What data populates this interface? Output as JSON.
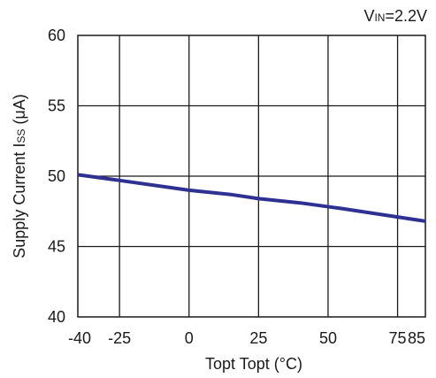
{
  "chart_data": {
    "type": "line",
    "annotation": {
      "main": "V",
      "sub": "IN",
      "rest": "=2.2V"
    },
    "xlabel": "Topt Topt (°C)",
    "ylabel": {
      "main": "Supply Current I",
      "sub": "SS",
      "rest": " (μA)"
    },
    "xlim": [
      -40,
      85
    ],
    "ylim": [
      40,
      60
    ],
    "xticks": [
      -40,
      -25,
      0,
      25,
      50,
      75,
      85
    ],
    "xtick_labels": [
      "-40",
      "-25",
      "0",
      "25",
      "50",
      "75",
      "85"
    ],
    "yticks": [
      40,
      45,
      50,
      55,
      60
    ],
    "ytick_labels": [
      "40",
      "45",
      "50",
      "55",
      "60"
    ],
    "xgrid": [
      -25,
      0,
      25,
      50,
      75
    ],
    "ygrid": [
      45,
      50,
      55
    ],
    "grid": true,
    "line_color": "#2e3192",
    "series": [
      {
        "x": [
          -40,
          -25,
          0,
          15,
          25,
          40,
          55,
          75,
          85
        ],
        "y": [
          50.1,
          49.7,
          49.0,
          48.7,
          48.4,
          48.1,
          47.7,
          47.1,
          46.8
        ]
      }
    ]
  }
}
